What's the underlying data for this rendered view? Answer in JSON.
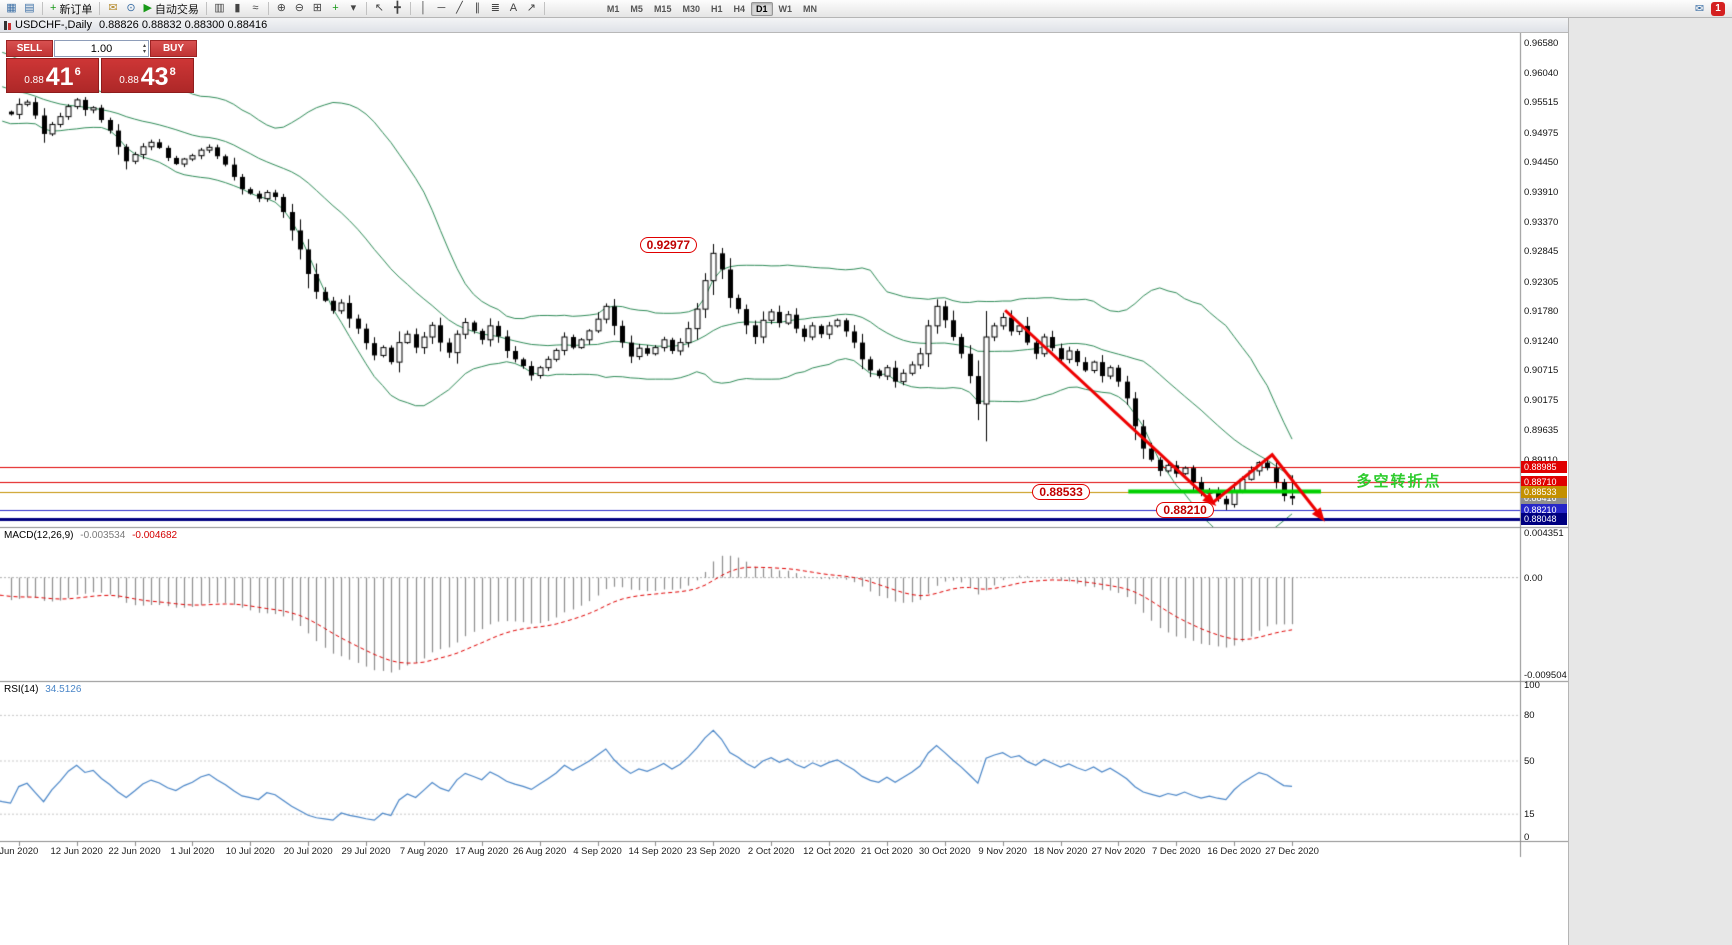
{
  "toolbar": {
    "buttons": [
      {
        "name": "new-chart-icon",
        "glyph": "▦",
        "color": "#3a6ea5"
      },
      {
        "name": "chart-profiles-icon",
        "glyph": "▤",
        "color": "#3a6ea5"
      },
      {
        "sep": true
      },
      {
        "name": "new-order-button",
        "glyph": "+",
        "color": "#189918",
        "label": "新订单"
      },
      {
        "sep": true
      },
      {
        "name": "mail-icon",
        "glyph": "✉",
        "color": "#b58a2c"
      },
      {
        "name": "history-center-icon",
        "glyph": "⊙",
        "color": "#3a6ea5"
      },
      {
        "name": "autotrading-button",
        "glyph": "▶",
        "color": "#189918",
        "label": "自动交易"
      },
      {
        "sep": true
      },
      {
        "name": "bar-chart-icon",
        "glyph": "▥",
        "color": "#444444"
      },
      {
        "name": "candlestick-chart-icon",
        "glyph": "▮",
        "color": "#444444"
      },
      {
        "name": "line-chart-icon",
        "glyph": "≈",
        "color": "#444444"
      },
      {
        "sep": true
      },
      {
        "name": "zoom-in-icon",
        "glyph": "⊕",
        "color": "#444444"
      },
      {
        "name": "zoom-out-icon",
        "glyph": "⊖",
        "color": "#444444"
      },
      {
        "name": "tile-windows-icon",
        "glyph": "⊞",
        "color": "#444444"
      },
      {
        "name": "indicators-icon",
        "glyph": "+",
        "color": "#189918"
      },
      {
        "name": "indicators-dropdown-icon",
        "glyph": "▾",
        "color": "#444444"
      },
      {
        "sep": true
      },
      {
        "name": "cursor-icon",
        "glyph": "↖",
        "color": "#444444"
      },
      {
        "name": "crosshair-icon",
        "glyph": "╋",
        "color": "#444444"
      },
      {
        "sep": true
      },
      {
        "name": "vertical-line-icon",
        "glyph": "│",
        "color": "#444444"
      },
      {
        "name": "horizontal-line-icon",
        "glyph": "─",
        "color": "#444444"
      },
      {
        "name": "trendline-icon",
        "glyph": "╱",
        "color": "#444444"
      },
      {
        "name": "channel-icon",
        "glyph": "∥",
        "color": "#444444"
      },
      {
        "name": "fibonacci-icon",
        "glyph": "≣",
        "color": "#444444"
      },
      {
        "name": "text-icon",
        "glyph": "A",
        "color": "#444444"
      },
      {
        "name": "arrows-icon",
        "glyph": "↗",
        "color": "#444444"
      },
      {
        "sep": true
      }
    ],
    "timeframes": {
      "items": [
        "M1",
        "M5",
        "M15",
        "M30",
        "H1",
        "H4",
        "D1",
        "W1",
        "MN"
      ],
      "active": "D1"
    },
    "right": [
      {
        "name": "mailbox-icon",
        "glyph": "✉",
        "color": "#3a6ea5"
      },
      {
        "name": "notification-badge",
        "label": "1",
        "badge": true
      }
    ]
  },
  "chart_window": {
    "title": "USDCHF-,Daily",
    "ohlc": "0.88826 0.88832 0.88300 0.88416"
  },
  "trade_panel": {
    "sell_label": "SELL",
    "buy_label": "BUY",
    "volume": "1.00",
    "bid": {
      "small": "0.88",
      "big": "41",
      "sup": "6"
    },
    "ask": {
      "small": "0.88",
      "big": "43",
      "sup": "8"
    }
  },
  "price_axis": {
    "scale": [
      "0.96580",
      "0.96040",
      "0.95515",
      "0.94975",
      "0.94450",
      "0.93910",
      "0.93370",
      "0.92845",
      "0.92305",
      "0.91780",
      "0.91240",
      "0.90715",
      "0.90175",
      "0.89635",
      "0.89110"
    ],
    "current_tag": {
      "text": "0.88416",
      "price": 0.88416,
      "bg": "#8f8f8f"
    }
  },
  "hlines": [
    {
      "price": 0.88985,
      "color": "#e00000",
      "width": 1,
      "tag": "0.88985"
    },
    {
      "price": 0.8871,
      "color": "#e00000",
      "width": 1,
      "tag": "0.88710"
    },
    {
      "price": 0.88533,
      "color": "#c49000",
      "width": 1,
      "tag": "0.88533"
    },
    {
      "price": 0.8821,
      "color": "#2626c8",
      "width": 1,
      "tag": "0.88210"
    },
    {
      "price": 0.88048,
      "color": "#000080",
      "width": 3,
      "tag": "0.88048"
    }
  ],
  "indicators": {
    "macd": {
      "name": "MACD(12,26,9)",
      "value1": "-0.003534",
      "value2": "-0.004682",
      "axis": [
        {
          "text": "0.004351",
          "v": 0.004351
        },
        {
          "text": "0.00",
          "v": 0
        },
        {
          "text": "-0.009504",
          "v": -0.009504
        }
      ],
      "range": {
        "max": 0.004351,
        "min": -0.009504
      },
      "histogram_color": "#8e8e8e",
      "signal_color": "#e00000"
    },
    "rsi": {
      "name": "RSI(14)",
      "value": "34.5126",
      "axis": [
        {
          "text": "100",
          "v": 100
        },
        {
          "text": "80",
          "v": 80
        },
        {
          "text": "50",
          "v": 50
        },
        {
          "text": "15",
          "v": 15
        },
        {
          "text": "0",
          "v": 0
        }
      ],
      "levels": [
        80,
        50,
        15
      ],
      "color": "#4a86c8"
    }
  },
  "annotations": {
    "price_labels": [
      {
        "text": "0.92977",
        "i": 76.4,
        "p": 0.9296
      },
      {
        "text": "0.88533",
        "i": 123.9,
        "p": 0.88533
      },
      {
        "text": "0.88210",
        "i": 138.9,
        "p": 0.8821
      }
    ],
    "trend_arrow": {
      "color": "#ee0000",
      "points": [
        {
          "i": 120.6,
          "p": 0.9179
        },
        {
          "i": 145.7,
          "p": 0.8834
        },
        {
          "i": 152.9,
          "p": 0.892
        },
        {
          "i": 158.9,
          "p": 0.8807
        }
      ],
      "heads": [
        1,
        3
      ]
    },
    "support_line": {
      "color": "#00d000",
      "p": 0.8854,
      "i1": 135.5,
      "i2": 158.8,
      "width": 4
    },
    "note": {
      "text": "多空转折点",
      "color": "#2dcc2d",
      "i": 163.1,
      "p": 0.8876
    }
  },
  "x_axis": {
    "dates": [
      [
        "Jun 2020",
        1
      ],
      [
        "12 Jun 2020",
        8
      ],
      [
        "22 Jun 2020",
        15
      ],
      [
        "1 Jul 2020",
        22
      ],
      [
        "10 Jul 2020",
        29
      ],
      [
        "20 Jul 2020",
        36
      ],
      [
        "29 Jul 2020",
        43
      ],
      [
        "7 Aug 2020",
        50
      ],
      [
        "17 Aug 2020",
        57
      ],
      [
        "26 Aug 2020",
        64
      ],
      [
        "4 Sep 2020",
        71
      ],
      [
        "14 Sep 2020",
        78
      ],
      [
        "23 Sep 2020",
        85
      ],
      [
        "2 Oct 2020",
        92
      ],
      [
        "12 Oct 2020",
        99
      ],
      [
        "21 Oct 2020",
        106
      ],
      [
        "30 Oct 2020",
        113
      ],
      [
        "9 Nov 2020",
        120
      ],
      [
        "18 Nov 2020",
        127
      ],
      [
        "27 Nov 2020",
        134
      ],
      [
        "7 Dec 2020",
        141
      ],
      [
        "16 Dec 2020",
        148
      ],
      [
        "27 Dec 2020",
        155
      ]
    ]
  },
  "chart_data": {
    "type": "candlestick",
    "symbol": "USDCHF-",
    "timeframe": "Daily",
    "last_ohlc": {
      "open": "0.88826",
      "high": "0.88832",
      "low": "0.88300",
      "close": "0.88416"
    },
    "price_range_visible": [
      0.879,
      0.9667
    ],
    "overlays": [
      "Bollinger Bands"
    ],
    "bands_color": "#2e8b57",
    "key_prices": {
      "september_peak": 0.92977,
      "support_label": 0.88533,
      "december_low": 0.8821,
      "current": 0.88416
    },
    "pre_bars": 20,
    "closes": [
      0.9625,
      0.963,
      0.9618,
      0.9622,
      0.961,
      0.96,
      0.9605,
      0.9592,
      0.958,
      0.9585,
      0.957,
      0.9575,
      0.956,
      0.9552,
      0.9558,
      0.9545,
      0.955,
      0.9538,
      0.9542,
      0.9535,
      0.953,
      0.9548,
      0.9552,
      0.9528,
      0.9495,
      0.9512,
      0.9526,
      0.9544,
      0.9556,
      0.9538,
      0.9542,
      0.952,
      0.9501,
      0.9472,
      0.9446,
      0.9458,
      0.9472,
      0.948,
      0.947,
      0.9452,
      0.9441,
      0.945,
      0.9456,
      0.9466,
      0.9471,
      0.9455,
      0.944,
      0.9418,
      0.9396,
      0.9388,
      0.9379,
      0.939,
      0.9382,
      0.9355,
      0.9322,
      0.9288,
      0.9244,
      0.9212,
      0.9196,
      0.9178,
      0.9192,
      0.9164,
      0.9146,
      0.912,
      0.9098,
      0.9112,
      0.9086,
      0.9121,
      0.9136,
      0.9112,
      0.9131,
      0.9152,
      0.9121,
      0.9103,
      0.9136,
      0.9157,
      0.9142,
      0.9126,
      0.9151,
      0.9132,
      0.9106,
      0.9091,
      0.9079,
      0.9062,
      0.9076,
      0.9091,
      0.9107,
      0.9131,
      0.9112,
      0.9126,
      0.9142,
      0.9163,
      0.9186,
      0.9151,
      0.9121,
      0.9096,
      0.9111,
      0.9101,
      0.9112,
      0.9126,
      0.9106,
      0.9121,
      0.9146,
      0.9181,
      0.9232,
      0.9281,
      0.9252,
      0.9201,
      0.9181,
      0.9152,
      0.9131,
      0.9161,
      0.9176,
      0.9156,
      0.9171,
      0.9146,
      0.9131,
      0.9151,
      0.9136,
      0.9151,
      0.9161,
      0.9141,
      0.9121,
      0.9091,
      0.9071,
      0.9061,
      0.9076,
      0.9051,
      0.9066,
      0.9081,
      0.9101,
      0.9151,
      0.9186,
      0.9161,
      0.9131,
      0.9101,
      0.9061,
      0.9011,
      0.9131,
      0.9151,
      0.9166,
      0.9141,
      0.9151,
      0.9121,
      0.9101,
      0.9131,
      0.9111,
      0.9091,
      0.9106,
      0.9086,
      0.9071,
      0.9086,
      0.9061,
      0.9076,
      0.9051,
      0.9021,
      0.8971,
      0.8931,
      0.8911,
      0.8891,
      0.8901,
      0.8886,
      0.8896,
      0.8871,
      0.8851,
      0.8856,
      0.8841,
      0.8831,
      0.8856,
      0.8876,
      0.8891,
      0.8906,
      0.8896,
      0.8871,
      0.8846,
      0.88416
    ],
    "wick_overrides": {
      "85": {
        "h": 0.92977
      },
      "117": {
        "l": 0.8982
      },
      "147": {
        "l": 0.8821
      },
      "155": {
        "h": 0.88832,
        "l": 0.883
      }
    }
  }
}
